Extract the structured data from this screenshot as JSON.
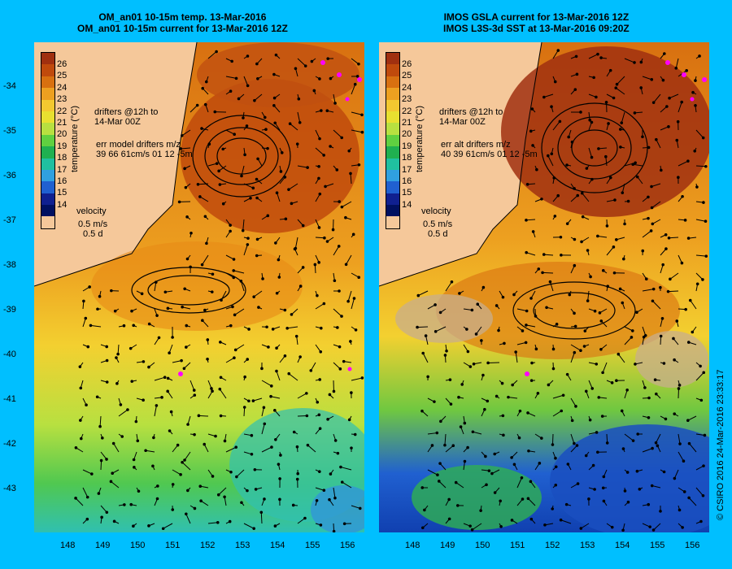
{
  "left_panel": {
    "title_line1": "OM_an01 10-15m temp. 13-Mar-2016",
    "title_line2": "OM_an01 10-15m current for 13-Mar-2016 12Z",
    "drifters_line1": "drifters @12h to",
    "drifters_line2": "14-Mar 00Z",
    "err_line1": "err model drifters m/z",
    "err_line2": "39 66 61cm/s 01 12 -5m"
  },
  "right_panel": {
    "title_line1": "IMOS GSLA current for 13-Mar-2016 12Z",
    "title_line2": "IMOS L3S-3d SST at 13-Mar-2016 09:20Z",
    "drifters_line1": "drifters @12h to",
    "drifters_line2": "14-Mar 00Z",
    "err_line1": "err alt drifters m/z",
    "err_line2": "40 39 61cm/s 01 12 -5m"
  },
  "colorbar": {
    "ticks": [
      "26",
      "25",
      "24",
      "23",
      "22",
      "21",
      "20",
      "19",
      "18",
      "17",
      "16",
      "15",
      "14"
    ],
    "unit": "temperature (°C)",
    "colors": [
      "#a03010",
      "#c04a0c",
      "#d87010",
      "#eda020",
      "#f3c830",
      "#e8e030",
      "#b8e040",
      "#60d040",
      "#20b050",
      "#20c0a0",
      "#30a0e0",
      "#2060d0",
      "#102090",
      "#001060"
    ]
  },
  "velocity_legend": {
    "label": "velocity",
    "speed": "0.5 m/s",
    "duration": "0.5 d"
  },
  "axes": {
    "lat_labels": [
      "-34",
      "-35",
      "-36",
      "-37",
      "-38",
      "-39",
      "-40",
      "-41",
      "-42",
      "-43"
    ],
    "lon_labels": [
      "148",
      "149",
      "150",
      "151",
      "152",
      "153",
      "154",
      "155",
      "156"
    ]
  },
  "credit": "© CSIRO 2016   24-Mar-2016 23:33:17"
}
